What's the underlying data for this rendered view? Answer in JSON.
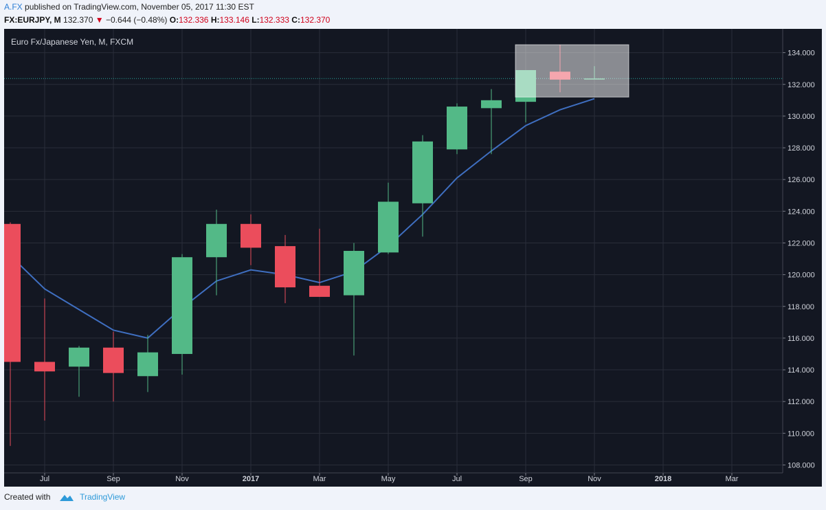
{
  "header": {
    "author": "A.FX",
    "published_text": "published on TradingView.com, November 05, 2017 11:30 EST",
    "symbol": "FX:EURJPY, M",
    "last": "132.370",
    "change": "−0.644 (−0.48%)",
    "ohlc": [
      {
        "label": "O:",
        "value": "132.336"
      },
      {
        "label": "H:",
        "value": "133.146"
      },
      {
        "label": "L:",
        "value": "132.333"
      },
      {
        "label": "C:",
        "value": "132.370"
      }
    ]
  },
  "footer": {
    "created_with": "Created with",
    "brand": "TradingView"
  },
  "colors": {
    "background": "#131722",
    "grid": "#2a2e39",
    "up": "#53b987",
    "down": "#eb4d5c",
    "ma": "#3f6fc1",
    "price_line": "#26a69a"
  },
  "chart_data": {
    "type": "candlestick",
    "title": "Euro Fx/Japanese Yen, M, FXCM",
    "ylim": [
      107.5,
      135.5
    ],
    "y_ticks": [
      "108.000",
      "110.000",
      "112.000",
      "114.000",
      "116.000",
      "118.000",
      "120.000",
      "122.000",
      "124.000",
      "126.000",
      "128.000",
      "130.000",
      "132.000",
      "134.000"
    ],
    "x_ticks": [
      "Jul",
      "Sep",
      "Nov",
      "2017",
      "Mar",
      "May",
      "Jul",
      "Sep",
      "Nov",
      "2018",
      "Mar"
    ],
    "x_ticks_bold": [
      "2017",
      "2018"
    ],
    "last_price": 132.37,
    "candles": [
      {
        "month": "2016-05",
        "open": 123.2,
        "high": 123.3,
        "low": 109.2,
        "close": 114.5
      },
      {
        "month": "2016-06",
        "open": 114.5,
        "high": 118.5,
        "low": 110.8,
        "close": 113.9
      },
      {
        "month": "2016-07",
        "open": 114.2,
        "high": 115.5,
        "low": 112.3,
        "close": 115.4
      },
      {
        "month": "2016-08",
        "open": 115.4,
        "high": 116.4,
        "low": 112.0,
        "close": 113.8
      },
      {
        "month": "2016-09",
        "open": 113.6,
        "high": 116.2,
        "low": 112.6,
        "close": 115.1
      },
      {
        "month": "2016-10",
        "open": 115.0,
        "high": 121.3,
        "low": 113.7,
        "close": 121.1
      },
      {
        "month": "2016-11",
        "open": 121.1,
        "high": 124.1,
        "low": 118.7,
        "close": 123.2
      },
      {
        "month": "2016-12",
        "open": 123.2,
        "high": 123.8,
        "low": 120.6,
        "close": 121.7
      },
      {
        "month": "2017-01",
        "open": 121.8,
        "high": 122.5,
        "low": 118.2,
        "close": 119.2
      },
      {
        "month": "2017-02",
        "open": 119.3,
        "high": 122.9,
        "low": 118.6,
        "close": 118.6
      },
      {
        "month": "2017-03",
        "open": 118.7,
        "high": 122.0,
        "low": 114.9,
        "close": 121.5
      },
      {
        "month": "2017-04",
        "open": 121.4,
        "high": 125.8,
        "low": 121.3,
        "close": 124.6
      },
      {
        "month": "2017-05",
        "open": 124.5,
        "high": 128.8,
        "low": 122.4,
        "close": 128.4
      },
      {
        "month": "2017-06",
        "open": 127.9,
        "high": 130.8,
        "low": 127.6,
        "close": 130.6
      },
      {
        "month": "2017-07",
        "open": 130.5,
        "high": 131.7,
        "low": 127.6,
        "close": 131.0
      },
      {
        "month": "2017-08",
        "open": 130.9,
        "high": 132.9,
        "low": 129.6,
        "close": 132.9
      },
      {
        "month": "2017-09",
        "open": 132.8,
        "high": 134.5,
        "low": 131.5,
        "close": 132.3
      },
      {
        "month": "2017-10",
        "open": 132.336,
        "high": 133.146,
        "low": 132.333,
        "close": 132.37
      }
    ],
    "ma": [
      {
        "month": "2016-05",
        "value": 121.2
      },
      {
        "month": "2016-06",
        "value": 119.1
      },
      {
        "month": "2016-07",
        "value": 117.8
      },
      {
        "month": "2016-08",
        "value": 116.5
      },
      {
        "month": "2016-09",
        "value": 116.0
      },
      {
        "month": "2016-10",
        "value": 117.9
      },
      {
        "month": "2016-11",
        "value": 119.6
      },
      {
        "month": "2016-12",
        "value": 120.3
      },
      {
        "month": "2017-01",
        "value": 120.0
      },
      {
        "month": "2017-02",
        "value": 119.5
      },
      {
        "month": "2017-03",
        "value": 120.2
      },
      {
        "month": "2017-04",
        "value": 121.8
      },
      {
        "month": "2017-05",
        "value": 123.8
      },
      {
        "month": "2017-06",
        "value": 126.1
      },
      {
        "month": "2017-07",
        "value": 127.8
      },
      {
        "month": "2017-08",
        "value": 129.4
      },
      {
        "month": "2017-09",
        "value": 130.4
      },
      {
        "month": "2017-10",
        "value": 131.1
      }
    ],
    "highlight": {
      "start": "2017-08",
      "end": "2017-10",
      "top": 134.5,
      "bottom": 131.2
    }
  }
}
